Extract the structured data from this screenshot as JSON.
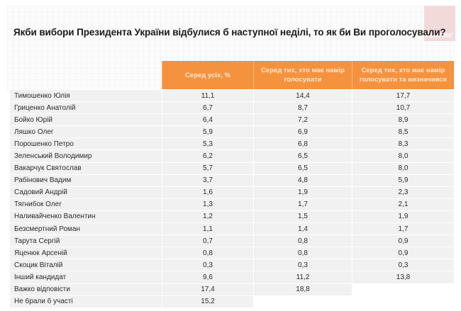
{
  "logo": {
    "text": "РЕЙТИНГ"
  },
  "title": "Якби вибори Президента України відбулися б наступної неділі, то як би Ви проголосували?",
  "colors": {
    "header_bg": "#f5923e",
    "header_text": "#fde6d2",
    "row_bg": "#f1f1f1"
  },
  "table": {
    "columns": [
      "Серед усіх, %",
      "Серед тих, хто має намір голосувати",
      "Серед тих, хто має намір голосувати та визначився"
    ],
    "rows": [
      {
        "name": "Тимошенко Юлія",
        "values": [
          "11,1",
          "14,4",
          "17,7"
        ]
      },
      {
        "name": "Гриценко Анатолій",
        "values": [
          "6,7",
          "8,7",
          "10,7"
        ]
      },
      {
        "name": "Бойко Юрій",
        "values": [
          "6,4",
          "7,2",
          "8,9"
        ]
      },
      {
        "name": "Ляшко Олег",
        "values": [
          "5,9",
          "6,9",
          "8,5"
        ]
      },
      {
        "name": "Порошенко Петро",
        "values": [
          "5,3",
          "6,8",
          "8,3"
        ]
      },
      {
        "name": "Зеленський Володимир",
        "values": [
          "6,2",
          "6,5",
          "8,0"
        ]
      },
      {
        "name": "Вакарчук Святослав",
        "values": [
          "5,7",
          "6,5",
          "8,0"
        ]
      },
      {
        "name": "Рабінович Вадим",
        "values": [
          "3,7",
          "4,8",
          "5,9"
        ]
      },
      {
        "name": "Садовий Андрій",
        "values": [
          "1,6",
          "1,9",
          "2,3"
        ]
      },
      {
        "name": "Тягнибок Олег",
        "values": [
          "1,3",
          "1,7",
          "2,1"
        ]
      },
      {
        "name": "Наливайченко Валентин",
        "values": [
          "1,2",
          "1,5",
          "1,9"
        ]
      },
      {
        "name": "Безсмертний Роман",
        "values": [
          "1,1",
          "1,4",
          "1,7"
        ]
      },
      {
        "name": "Тарута Сергій",
        "values": [
          "0,7",
          "0,8",
          "0,9"
        ]
      },
      {
        "name": "Яценюк Арсеній",
        "values": [
          "0,8",
          "0,8",
          "0,9"
        ]
      },
      {
        "name": "Скоцик Віталій",
        "values": [
          "0,3",
          "0,3",
          "0,3"
        ]
      },
      {
        "name": "Інший кандидат",
        "values": [
          "9,6",
          "11,2",
          "13,8"
        ]
      },
      {
        "name": "Важко відповісти",
        "values": [
          "17,4",
          "18,8",
          null
        ]
      },
      {
        "name": "Не брали б участі",
        "values": [
          "15,2",
          null,
          null
        ]
      }
    ]
  }
}
